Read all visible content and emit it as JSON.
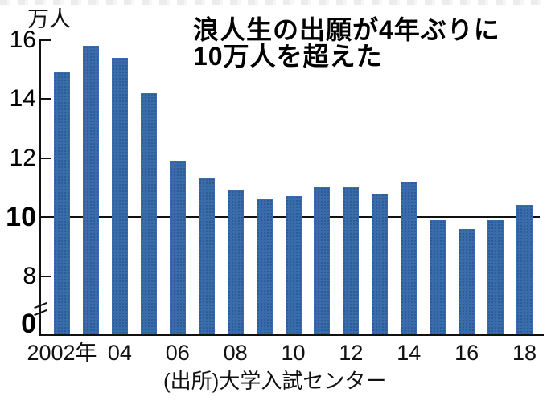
{
  "chart": {
    "unit_label": "万人",
    "title_lines": [
      "浪人生の出願が4年ぶりに",
      "10万人を超えた"
    ],
    "source": "(出所)大学入試センター",
    "bar_color": "#3a6cac",
    "bar_dot_color": "#28558f",
    "axis_color": "#111111"
  },
  "chart_data": {
    "type": "bar",
    "title": "浪人生の出願が4年ぶりに10万人を超えた",
    "ylabel": "万人",
    "xlabel": "",
    "source": "(出所)大学入試センター",
    "categories": [
      "2002",
      "2003",
      "2004",
      "2005",
      "2006",
      "2007",
      "2008",
      "2009",
      "2010",
      "2011",
      "2012",
      "2013",
      "2014",
      "2015",
      "2016",
      "2017",
      "2018"
    ],
    "values": [
      14.9,
      15.8,
      15.4,
      14.2,
      11.9,
      11.3,
      10.9,
      10.6,
      10.7,
      11.0,
      11.0,
      10.8,
      11.2,
      9.9,
      9.6,
      9.9,
      10.4
    ],
    "x_tick_labels": [
      "2002年",
      "04",
      "06",
      "08",
      "10",
      "12",
      "14",
      "16",
      "18"
    ],
    "x_tick_indices": [
      0,
      2,
      4,
      6,
      8,
      10,
      12,
      14,
      16
    ],
    "y_ticks": [
      16,
      14,
      12,
      10,
      8
    ],
    "y_tick_emphasis": [
      10
    ],
    "y_zero_label": "0",
    "reference_line": 10,
    "axis_break_between": [
      0,
      8
    ],
    "ylim_display": [
      0,
      16
    ],
    "grid": false,
    "legend": false
  }
}
